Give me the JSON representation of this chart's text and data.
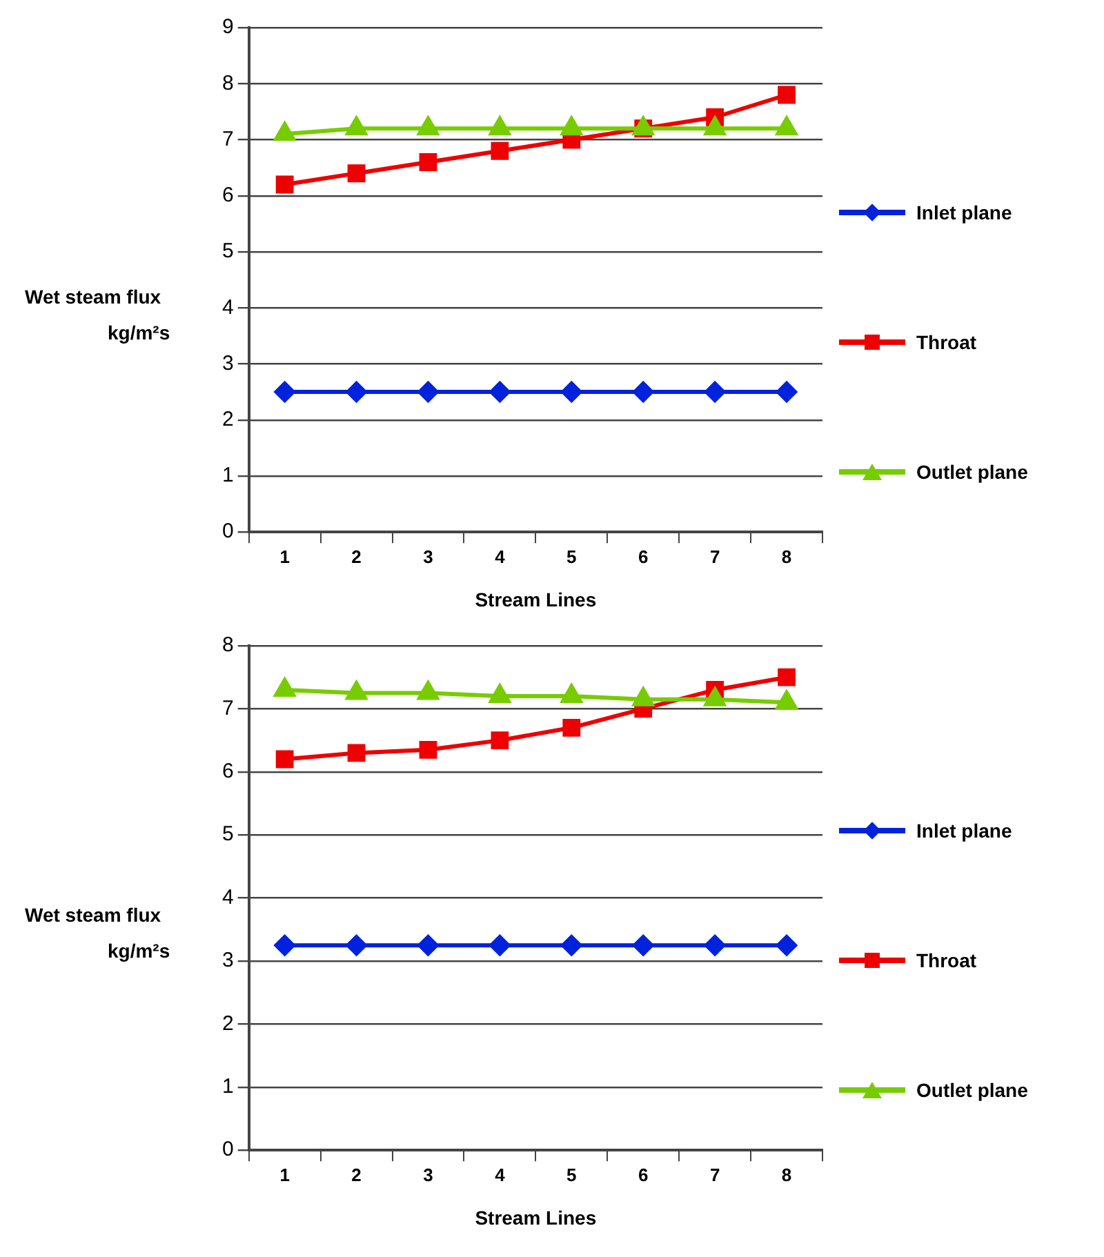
{
  "chart_data": [
    {
      "type": "line",
      "xlabel": "Stream Lines",
      "ylabel": "Wet steam flux\nkg/m²s",
      "categories": [
        "1",
        "2",
        "3",
        "4",
        "5",
        "6",
        "7",
        "8"
      ],
      "ylim": [
        0,
        9
      ],
      "yticks": [
        0,
        1,
        2,
        3,
        4,
        5,
        6,
        7,
        8,
        9
      ],
      "grid": "y",
      "legend": "right",
      "series": [
        {
          "name": "Inlet plane",
          "color": "#0022dd",
          "marker": "diamond",
          "values": [
            2.5,
            2.5,
            2.5,
            2.5,
            2.5,
            2.5,
            2.5,
            2.5
          ]
        },
        {
          "name": "Throat",
          "color": "#ee0000",
          "marker": "square",
          "values": [
            6.2,
            6.4,
            6.6,
            6.8,
            7.0,
            7.2,
            7.4,
            7.8
          ]
        },
        {
          "name": "Outlet plane",
          "color": "#77cc00",
          "marker": "triangle",
          "values": [
            7.1,
            7.2,
            7.2,
            7.2,
            7.2,
            7.2,
            7.2,
            7.2
          ]
        }
      ]
    },
    {
      "type": "line",
      "xlabel": "Stream Lines",
      "ylabel": "Wet steam flux\nkg/m²s",
      "categories": [
        "1",
        "2",
        "3",
        "4",
        "5",
        "6",
        "7",
        "8"
      ],
      "ylim": [
        0,
        8
      ],
      "yticks": [
        0,
        1,
        2,
        3,
        4,
        5,
        6,
        7,
        8
      ],
      "grid": "y",
      "legend": "right",
      "series": [
        {
          "name": "Inlet plane",
          "color": "#0022dd",
          "marker": "diamond",
          "values": [
            3.25,
            3.25,
            3.25,
            3.25,
            3.25,
            3.25,
            3.25,
            3.25
          ]
        },
        {
          "name": "Throat",
          "color": "#ee0000",
          "marker": "square",
          "values": [
            6.2,
            6.3,
            6.35,
            6.5,
            6.7,
            7.0,
            7.3,
            7.5
          ]
        },
        {
          "name": "Outlet plane",
          "color": "#77cc00",
          "marker": "triangle",
          "values": [
            7.3,
            7.25,
            7.25,
            7.2,
            7.2,
            7.15,
            7.15,
            7.1
          ]
        }
      ]
    }
  ]
}
